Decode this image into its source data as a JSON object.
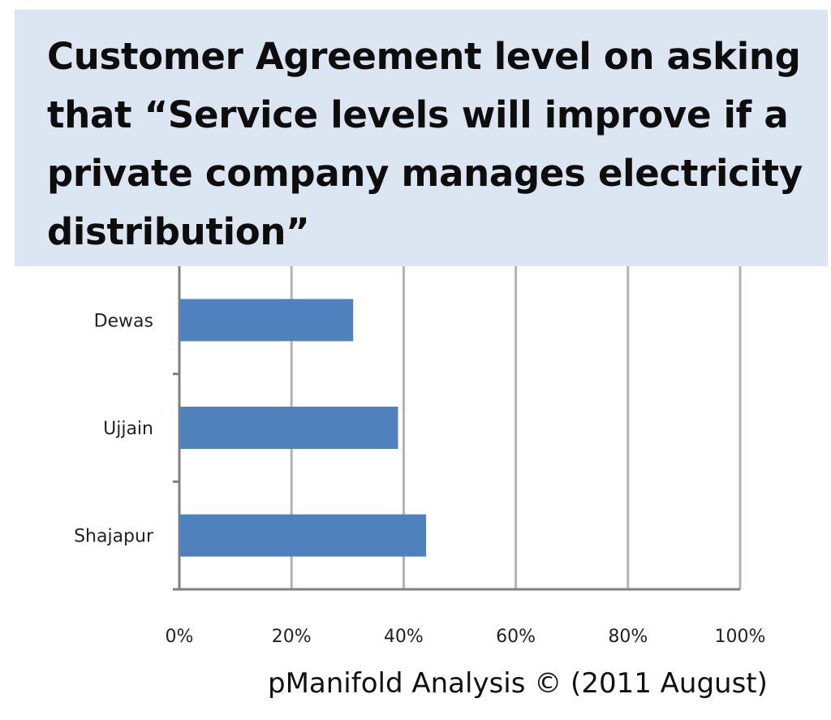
{
  "chart_data": {
    "type": "bar",
    "orientation": "horizontal",
    "title": "Customer Agreement level on asking\nthat “Service levels will improve if a\nprivate company manages electricity\ndistribution”",
    "categories": [
      "Dewas",
      "Ujjain",
      "Shajapur"
    ],
    "values": [
      31,
      39,
      44
    ],
    "xlim": [
      0,
      100
    ],
    "xticks": [
      "0%",
      "20%",
      "40%",
      "60%",
      "80%",
      "100%"
    ],
    "tick_values": [
      0,
      20,
      40,
      60,
      80,
      100
    ],
    "grid": true,
    "legend": "none",
    "bar_color": "#4f81bd",
    "grid_color": "#b3b3b3"
  },
  "footer": {
    "source": "pManifold Analysis © (2011 August)"
  }
}
